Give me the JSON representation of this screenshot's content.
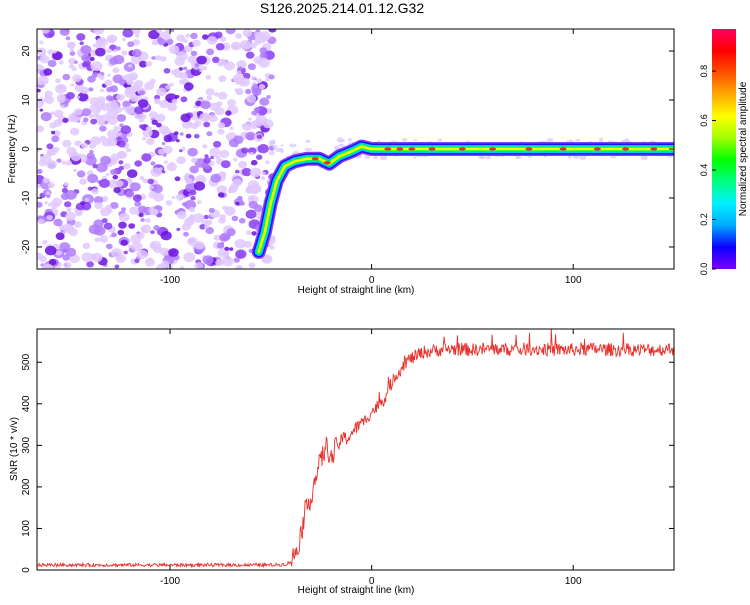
{
  "page_title": "S126.2025.214.01.12.G32",
  "colorbar": {
    "label": "Normalized spectral amplitude",
    "ticks": [
      "0.0",
      "0.2",
      "0.4",
      "0.6",
      "0.8"
    ],
    "range": [
      0,
      0.97
    ],
    "stops": [
      "#7a00ff",
      "#0a00ff",
      "#00aaff",
      "#00f0ff",
      "#00ff80",
      "#00ff00",
      "#a0ff00",
      "#ffff00",
      "#ffaa00",
      "#ff5000",
      "#ff0000",
      "#ff0060"
    ]
  },
  "chart_data": [
    {
      "type": "heatmap",
      "title": "S126.2025.214.01.12.G32",
      "xlabel": "Height of straight line (km)",
      "ylabel": "Frequency (Hz)",
      "xlim": [
        -166,
        150
      ],
      "ylim": [
        -24.5,
        24.5
      ],
      "xticks": [
        -100,
        0,
        100
      ],
      "yticks": [
        -20,
        -10,
        0,
        10,
        20
      ],
      "noise_region_x": [
        -166,
        -49
      ],
      "ridge": [
        {
          "x": -56,
          "y": -21
        },
        {
          "x": -53,
          "y": -17
        },
        {
          "x": -50,
          "y": -11
        },
        {
          "x": -47,
          "y": -6.5
        },
        {
          "x": -43,
          "y": -3.5
        },
        {
          "x": -38,
          "y": -2.5
        },
        {
          "x": -32,
          "y": -2
        },
        {
          "x": -26,
          "y": -2
        },
        {
          "x": -21,
          "y": -3
        },
        {
          "x": -16,
          "y": -1.5
        },
        {
          "x": -10,
          "y": -0.5
        },
        {
          "x": -5,
          "y": 0.5
        },
        {
          "x": 0,
          "y": 0
        },
        {
          "x": 10,
          "y": 0
        },
        {
          "x": 40,
          "y": 0
        },
        {
          "x": 70,
          "y": 0
        },
        {
          "x": 100,
          "y": 0
        },
        {
          "x": 150,
          "y": 0
        }
      ]
    },
    {
      "type": "line",
      "xlabel": "Height of straight line (km)",
      "ylabel": "SNR (10 * v/v)",
      "xlim": [
        -166,
        150
      ],
      "ylim": [
        0,
        580
      ],
      "xticks": [
        -100,
        0,
        100
      ],
      "yticks": [
        0,
        100,
        200,
        300,
        400,
        500
      ],
      "color": "#e8302a",
      "series": [
        {
          "x": [
            -166,
            -140,
            -120,
            -100,
            -80,
            -60,
            -50,
            -45,
            -42,
            -40,
            -38,
            -36,
            -34,
            -32,
            -30,
            -28,
            -26,
            -24,
            -22,
            -20,
            -18,
            -16,
            -14,
            -12,
            -10,
            -8,
            -6,
            -4,
            -2,
            0,
            2,
            4,
            6,
            8,
            10,
            12,
            14,
            16,
            18,
            20,
            22,
            24,
            26,
            28,
            30,
            35,
            40,
            50,
            60,
            70,
            80,
            90,
            100,
            110,
            120,
            130,
            140,
            150
          ],
          "values": [
            12,
            12,
            12,
            12,
            12,
            12,
            12,
            13,
            15,
            20,
            40,
            70,
            110,
            150,
            180,
            220,
            250,
            280,
            300,
            265,
            290,
            305,
            320,
            315,
            330,
            340,
            350,
            355,
            370,
            380,
            390,
            400,
            410,
            430,
            450,
            470,
            480,
            495,
            505,
            510,
            515,
            520,
            525,
            525,
            528,
            530,
            532,
            530,
            532,
            530,
            532,
            530,
            530,
            532,
            530,
            530,
            530,
            532
          ]
        }
      ]
    }
  ]
}
